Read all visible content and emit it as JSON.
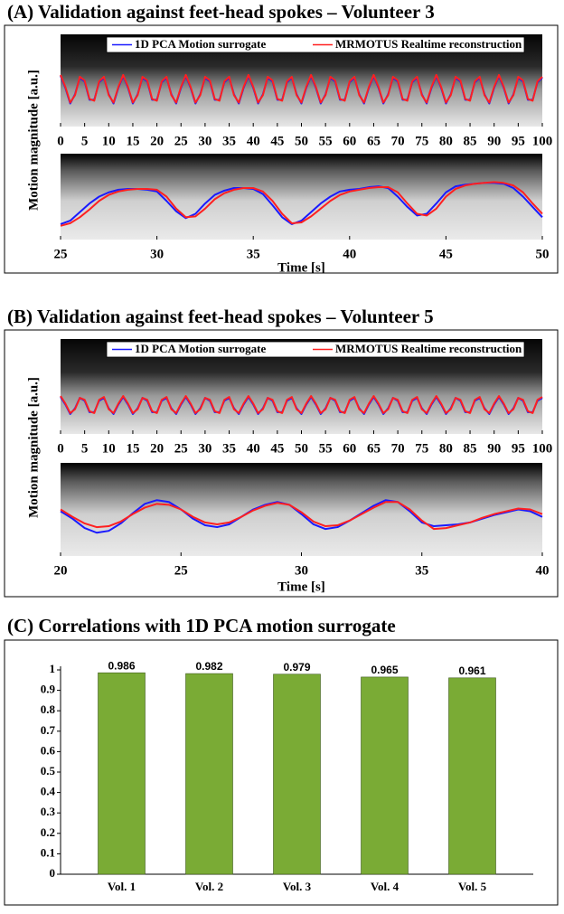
{
  "chart_data": [
    {
      "type": "line",
      "title": "(A) Validation against feet-head spokes – Volunteer 3",
      "ylabel": "Motion magnitude [a.u.]",
      "x": [
        0,
        1,
        2,
        3,
        4,
        5,
        6,
        7,
        8,
        9,
        10,
        11,
        12,
        13,
        14,
        15,
        16,
        17,
        18,
        19,
        20,
        21,
        22,
        23,
        24,
        25,
        26,
        27,
        28,
        29,
        30,
        31,
        32,
        33,
        34,
        35,
        36,
        37,
        38,
        39,
        40,
        41,
        42,
        43,
        44,
        45,
        46,
        47,
        48,
        49,
        50,
        51,
        52,
        53,
        54,
        55,
        56,
        57,
        58,
        59,
        60,
        61,
        62,
        63,
        64,
        65,
        66,
        67,
        68,
        69,
        70,
        71,
        72,
        73,
        74,
        75,
        76,
        77,
        78,
        79,
        80,
        81,
        82,
        83,
        84,
        85,
        86,
        87,
        88,
        89,
        90,
        91,
        92,
        93,
        94,
        95,
        96,
        97,
        98,
        99,
        100
      ],
      "xlim": [
        0,
        100
      ],
      "xticks": [
        0,
        5,
        10,
        15,
        20,
        25,
        30,
        35,
        40,
        45,
        50,
        55,
        60,
        65,
        70,
        75,
        80,
        85,
        90,
        95,
        100
      ],
      "ylim": [
        0,
        1
      ],
      "series": [
        {
          "name": "1D PCA Motion surrogate",
          "color": "#1a1aff",
          "values": [
            0.55,
            0.42,
            0.25,
            0.35,
            0.53,
            0.49,
            0.29,
            0.29,
            0.48,
            0.53,
            0.35,
            0.25,
            0.42,
            0.55,
            0.42,
            0.25,
            0.35,
            0.53,
            0.49,
            0.29,
            0.29,
            0.48,
            0.53,
            0.35,
            0.25,
            0.42,
            0.55,
            0.42,
            0.25,
            0.35,
            0.53,
            0.49,
            0.29,
            0.29,
            0.48,
            0.53,
            0.35,
            0.25,
            0.42,
            0.55,
            0.42,
            0.25,
            0.35,
            0.53,
            0.49,
            0.29,
            0.29,
            0.48,
            0.53,
            0.35,
            0.25,
            0.42,
            0.55,
            0.42,
            0.25,
            0.35,
            0.53,
            0.49,
            0.29,
            0.29,
            0.48,
            0.53,
            0.35,
            0.25,
            0.42,
            0.55,
            0.42,
            0.25,
            0.35,
            0.53,
            0.49,
            0.29,
            0.29,
            0.48,
            0.53,
            0.35,
            0.25,
            0.42,
            0.55,
            0.42,
            0.25,
            0.35,
            0.53,
            0.49,
            0.29,
            0.29,
            0.48,
            0.53,
            0.35,
            0.25,
            0.42,
            0.55,
            0.42,
            0.25,
            0.35,
            0.53,
            0.49,
            0.29,
            0.29,
            0.48,
            0.53
          ]
        },
        {
          "name": "MRMOTUS Realtime reconstruction",
          "color": "#ff2020",
          "values": [
            0.56,
            0.43,
            0.26,
            0.34,
            0.54,
            0.5,
            0.3,
            0.28,
            0.49,
            0.54,
            0.34,
            0.26,
            0.43,
            0.56,
            0.43,
            0.26,
            0.34,
            0.54,
            0.5,
            0.3,
            0.28,
            0.49,
            0.54,
            0.34,
            0.26,
            0.43,
            0.56,
            0.43,
            0.26,
            0.34,
            0.54,
            0.5,
            0.3,
            0.28,
            0.49,
            0.54,
            0.34,
            0.26,
            0.43,
            0.56,
            0.43,
            0.26,
            0.34,
            0.54,
            0.5,
            0.3,
            0.28,
            0.49,
            0.54,
            0.34,
            0.26,
            0.43,
            0.56,
            0.43,
            0.26,
            0.34,
            0.54,
            0.5,
            0.3,
            0.28,
            0.49,
            0.54,
            0.34,
            0.26,
            0.43,
            0.56,
            0.43,
            0.26,
            0.34,
            0.54,
            0.5,
            0.3,
            0.28,
            0.49,
            0.54,
            0.34,
            0.26,
            0.43,
            0.56,
            0.43,
            0.26,
            0.34,
            0.54,
            0.5,
            0.3,
            0.28,
            0.49,
            0.54,
            0.34,
            0.26,
            0.43,
            0.56,
            0.43,
            0.26,
            0.34,
            0.54,
            0.5,
            0.3,
            0.28,
            0.49,
            0.54
          ]
        }
      ]
    },
    {
      "type": "line",
      "xlabel": "Time [s]",
      "x": [
        25,
        25.5,
        26,
        26.5,
        27,
        27.5,
        28,
        28.5,
        29,
        29.5,
        30,
        30.5,
        31,
        31.5,
        32,
        32.5,
        33,
        33.5,
        34,
        34.5,
        35,
        35.5,
        36,
        36.5,
        37,
        37.5,
        38,
        38.5,
        39,
        39.5,
        40,
        40.5,
        41,
        41.5,
        42,
        42.5,
        43,
        43.5,
        44,
        44.5,
        45,
        45.5,
        46,
        46.5,
        47,
        47.5,
        48,
        48.5,
        49,
        49.5,
        50
      ],
      "xlim": [
        25,
        50
      ],
      "xticks": [
        25,
        30,
        35,
        40,
        45,
        50
      ],
      "ylim": [
        0,
        1
      ],
      "series": [
        {
          "color": "#1a1aff",
          "values": [
            0.18,
            0.22,
            0.32,
            0.42,
            0.5,
            0.55,
            0.58,
            0.59,
            0.59,
            0.58,
            0.56,
            0.45,
            0.33,
            0.25,
            0.3,
            0.42,
            0.52,
            0.57,
            0.6,
            0.6,
            0.59,
            0.53,
            0.4,
            0.26,
            0.18,
            0.22,
            0.32,
            0.42,
            0.5,
            0.56,
            0.58,
            0.59,
            0.61,
            0.62,
            0.6,
            0.5,
            0.38,
            0.28,
            0.3,
            0.42,
            0.55,
            0.62,
            0.64,
            0.65,
            0.66,
            0.66,
            0.65,
            0.6,
            0.5,
            0.38,
            0.26
          ]
        },
        {
          "color": "#ff2020",
          "values": [
            0.16,
            0.19,
            0.26,
            0.35,
            0.45,
            0.52,
            0.56,
            0.58,
            0.59,
            0.59,
            0.58,
            0.5,
            0.36,
            0.26,
            0.27,
            0.36,
            0.47,
            0.54,
            0.58,
            0.6,
            0.6,
            0.56,
            0.45,
            0.3,
            0.19,
            0.2,
            0.27,
            0.36,
            0.45,
            0.52,
            0.56,
            0.58,
            0.6,
            0.61,
            0.61,
            0.55,
            0.42,
            0.3,
            0.28,
            0.36,
            0.5,
            0.59,
            0.63,
            0.65,
            0.66,
            0.67,
            0.66,
            0.63,
            0.55,
            0.42,
            0.3
          ]
        }
      ]
    },
    {
      "type": "line",
      "title": "(B) Validation against feet-head spokes – Volunteer 5",
      "ylabel": "Motion magnitude [a.u.]",
      "x": [
        0,
        1,
        2,
        3,
        4,
        5,
        6,
        7,
        8,
        9,
        10,
        11,
        12,
        13,
        14,
        15,
        16,
        17,
        18,
        19,
        20,
        21,
        22,
        23,
        24,
        25,
        26,
        27,
        28,
        29,
        30,
        31,
        32,
        33,
        34,
        35,
        36,
        37,
        38,
        39,
        40,
        41,
        42,
        43,
        44,
        45,
        46,
        47,
        48,
        49,
        50,
        51,
        52,
        53,
        54,
        55,
        56,
        57,
        58,
        59,
        60,
        61,
        62,
        63,
        64,
        65,
        66,
        67,
        68,
        69,
        70,
        71,
        72,
        73,
        74,
        75,
        76,
        77,
        78,
        79,
        80,
        81,
        82,
        83,
        84,
        85,
        86,
        87,
        88,
        89,
        90,
        91,
        92,
        93,
        94,
        95,
        96,
        97,
        98,
        99,
        100
      ],
      "xlim": [
        0,
        100
      ],
      "xticks": [
        0,
        5,
        10,
        15,
        20,
        25,
        30,
        35,
        40,
        45,
        50,
        55,
        60,
        65,
        70,
        75,
        80,
        85,
        90,
        95,
        100
      ],
      "ylim": [
        0,
        1
      ],
      "series": [
        {
          "name": "1D PCA Motion surrogate",
          "color": "#1a1aff",
          "values": [
            0.39,
            0.31,
            0.21,
            0.27,
            0.38,
            0.35,
            0.23,
            0.23,
            0.35,
            0.38,
            0.27,
            0.21,
            0.31,
            0.39,
            0.31,
            0.21,
            0.27,
            0.38,
            0.35,
            0.23,
            0.23,
            0.35,
            0.38,
            0.27,
            0.21,
            0.31,
            0.39,
            0.31,
            0.21,
            0.27,
            0.38,
            0.35,
            0.23,
            0.23,
            0.35,
            0.38,
            0.27,
            0.21,
            0.31,
            0.39,
            0.31,
            0.21,
            0.27,
            0.38,
            0.35,
            0.23,
            0.23,
            0.35,
            0.38,
            0.27,
            0.21,
            0.31,
            0.39,
            0.31,
            0.21,
            0.27,
            0.38,
            0.35,
            0.23,
            0.23,
            0.35,
            0.38,
            0.27,
            0.21,
            0.31,
            0.39,
            0.31,
            0.21,
            0.27,
            0.38,
            0.35,
            0.23,
            0.23,
            0.35,
            0.38,
            0.27,
            0.21,
            0.31,
            0.39,
            0.31,
            0.21,
            0.27,
            0.38,
            0.35,
            0.23,
            0.23,
            0.35,
            0.38,
            0.27,
            0.21,
            0.31,
            0.39,
            0.31,
            0.21,
            0.27,
            0.38,
            0.35,
            0.23,
            0.23,
            0.35,
            0.38
          ]
        },
        {
          "name": "MRMOTUS Realtime reconstruction",
          "color": "#ff2020",
          "values": [
            0.4,
            0.32,
            0.22,
            0.26,
            0.38,
            0.36,
            0.24,
            0.22,
            0.36,
            0.39,
            0.26,
            0.22,
            0.32,
            0.4,
            0.32,
            0.22,
            0.26,
            0.38,
            0.36,
            0.24,
            0.22,
            0.36,
            0.39,
            0.26,
            0.22,
            0.32,
            0.4,
            0.32,
            0.22,
            0.26,
            0.38,
            0.36,
            0.24,
            0.22,
            0.36,
            0.39,
            0.26,
            0.22,
            0.32,
            0.4,
            0.32,
            0.22,
            0.26,
            0.38,
            0.36,
            0.24,
            0.22,
            0.36,
            0.39,
            0.26,
            0.22,
            0.32,
            0.4,
            0.32,
            0.22,
            0.26,
            0.38,
            0.36,
            0.24,
            0.22,
            0.36,
            0.39,
            0.26,
            0.22,
            0.32,
            0.4,
            0.32,
            0.22,
            0.26,
            0.38,
            0.36,
            0.24,
            0.22,
            0.36,
            0.39,
            0.26,
            0.22,
            0.32,
            0.4,
            0.32,
            0.22,
            0.26,
            0.38,
            0.36,
            0.24,
            0.22,
            0.36,
            0.39,
            0.26,
            0.22,
            0.32,
            0.4,
            0.32,
            0.22,
            0.26,
            0.38,
            0.36,
            0.24,
            0.22,
            0.36,
            0.39
          ]
        }
      ]
    },
    {
      "type": "line",
      "xlabel": "Time [s]",
      "x": [
        20,
        20.5,
        21,
        21.5,
        22,
        22.5,
        23,
        23.5,
        24,
        24.5,
        25,
        25.5,
        26,
        26.5,
        27,
        27.5,
        28,
        28.5,
        29,
        29.5,
        30,
        30.5,
        31,
        31.5,
        32,
        32.5,
        33,
        33.5,
        34,
        34.5,
        35,
        35.5,
        36,
        36.5,
        37,
        37.5,
        38,
        38.5,
        39,
        39.5,
        40
      ],
      "xlim": [
        20,
        40
      ],
      "xticks": [
        20,
        25,
        30,
        35,
        40
      ],
      "ylim": [
        0,
        1
      ],
      "series": [
        {
          "color": "#1a1aff",
          "values": [
            0.48,
            0.4,
            0.3,
            0.25,
            0.27,
            0.35,
            0.46,
            0.56,
            0.6,
            0.58,
            0.5,
            0.4,
            0.33,
            0.31,
            0.34,
            0.42,
            0.5,
            0.55,
            0.58,
            0.55,
            0.45,
            0.34,
            0.29,
            0.31,
            0.38,
            0.46,
            0.54,
            0.6,
            0.58,
            0.48,
            0.36,
            0.32,
            0.33,
            0.34,
            0.36,
            0.4,
            0.44,
            0.47,
            0.5,
            0.48,
            0.42
          ]
        },
        {
          "color": "#ff2020",
          "values": [
            0.5,
            0.42,
            0.35,
            0.31,
            0.32,
            0.37,
            0.45,
            0.52,
            0.56,
            0.55,
            0.5,
            0.42,
            0.36,
            0.34,
            0.36,
            0.42,
            0.49,
            0.54,
            0.57,
            0.55,
            0.47,
            0.37,
            0.32,
            0.33,
            0.38,
            0.45,
            0.52,
            0.58,
            0.58,
            0.5,
            0.38,
            0.29,
            0.3,
            0.33,
            0.36,
            0.41,
            0.45,
            0.48,
            0.51,
            0.5,
            0.45
          ]
        }
      ]
    },
    {
      "type": "bar",
      "title": "(C) Correlations with 1D PCA motion surrogate",
      "categories": [
        "Vol. 1",
        "Vol. 2",
        "Vol. 3",
        "Vol. 4",
        "Vol. 5"
      ],
      "values": [
        0.986,
        0.982,
        0.979,
        0.965,
        0.961
      ],
      "color": "#7aab35",
      "ylim": [
        0,
        1
      ],
      "yticks": [
        0,
        0.1,
        0.2,
        0.3,
        0.4,
        0.5,
        0.6,
        0.7,
        0.8,
        0.9,
        1
      ]
    }
  ]
}
